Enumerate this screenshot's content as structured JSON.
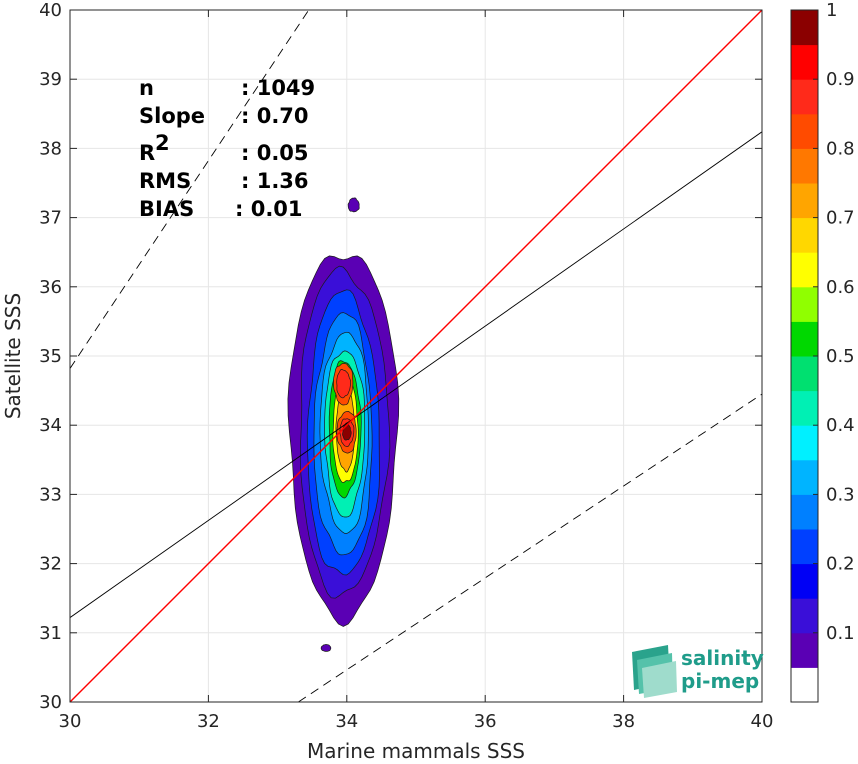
{
  "chart_data": {
    "type": "heatmap",
    "title": "",
    "xlabel": "Marine mammals SSS",
    "ylabel": "Satellite SSS",
    "xlim": [
      30,
      40
    ],
    "ylim": [
      30,
      40
    ],
    "x_ticks": [
      "30",
      "32",
      "34",
      "36",
      "38",
      "40"
    ],
    "y_ticks": [
      "30",
      "31",
      "32",
      "33",
      "34",
      "35",
      "36",
      "37",
      "38",
      "39",
      "40"
    ],
    "grid": true,
    "stats": [
      {
        "label": "n",
        "value": ": 1049"
      },
      {
        "label": "Slope",
        "value": ": 0.70"
      },
      {
        "label": "R",
        "sup": "2",
        "value": ": 0.05"
      },
      {
        "label": "RMS",
        "value": ": 1.36"
      },
      {
        "label": "BIAS",
        "value": ": 0.01"
      }
    ],
    "lines": {
      "identity": {
        "slope": 1,
        "intercept": 0,
        "color": "#ff0000"
      },
      "fit": {
        "x": [
          30,
          40
        ],
        "y": [
          31.22,
          38.24
        ],
        "color": "#000000"
      },
      "upper_dashed": {
        "x": [
          30,
          33.45
        ],
        "y": [
          34.82,
          40
        ]
      },
      "lower_dashed": {
        "x": [
          33.3,
          40
        ],
        "y": [
          30,
          34.45
        ]
      }
    },
    "density_peaks": [
      {
        "x": 34.0,
        "y": 33.9,
        "value": 1.0
      },
      {
        "x": 33.95,
        "y": 34.6,
        "value": 0.85
      }
    ],
    "colorbar": {
      "range": [
        0,
        1
      ],
      "ticks": [
        "0.1",
        "0.2",
        "0.3",
        "0.4",
        "0.5",
        "0.6",
        "0.7",
        "0.8",
        "0.9",
        "1"
      ],
      "levels": [
        {
          "from": 0.0,
          "to": 0.05,
          "color": "#ffffff"
        },
        {
          "from": 0.05,
          "to": 0.1,
          "color": "#5a00b4"
        },
        {
          "from": 0.1,
          "to": 0.15,
          "color": "#3a0fd8"
        },
        {
          "from": 0.15,
          "to": 0.2,
          "color": "#0000f5"
        },
        {
          "from": 0.2,
          "to": 0.25,
          "color": "#0040ff"
        },
        {
          "from": 0.25,
          "to": 0.3,
          "color": "#0080ff"
        },
        {
          "from": 0.3,
          "to": 0.35,
          "color": "#00b4ff"
        },
        {
          "from": 0.35,
          "to": 0.4,
          "color": "#00f0ff"
        },
        {
          "from": 0.4,
          "to": 0.45,
          "color": "#00f0b4"
        },
        {
          "from": 0.45,
          "to": 0.5,
          "color": "#00e070"
        },
        {
          "from": 0.5,
          "to": 0.55,
          "color": "#00d800"
        },
        {
          "from": 0.55,
          "to": 0.6,
          "color": "#90ff00"
        },
        {
          "from": 0.6,
          "to": 0.65,
          "color": "#ffff00"
        },
        {
          "from": 0.65,
          "to": 0.7,
          "color": "#ffd700"
        },
        {
          "from": 0.7,
          "to": 0.75,
          "color": "#ffa500"
        },
        {
          "from": 0.75,
          "to": 0.8,
          "color": "#ff7800"
        },
        {
          "from": 0.8,
          "to": 0.85,
          "color": "#ff4b00"
        },
        {
          "from": 0.85,
          "to": 0.9,
          "color": "#ff2a1a"
        },
        {
          "from": 0.9,
          "to": 0.95,
          "color": "#ff0000"
        },
        {
          "from": 0.95,
          "to": 1.0,
          "color": "#8b0000"
        }
      ]
    }
  },
  "logo": {
    "line1": "salinity",
    "line2": "pi-mep"
  }
}
